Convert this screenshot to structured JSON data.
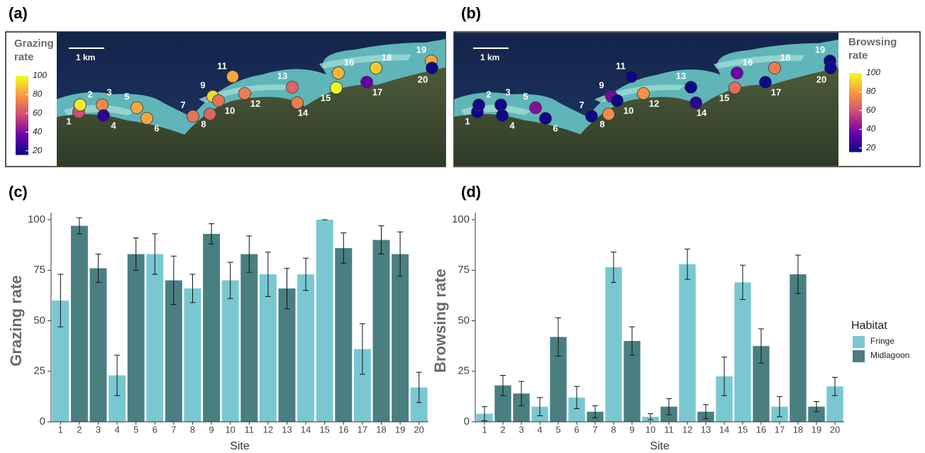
{
  "chart_data": [
    {
      "type": "map",
      "panel": "(a)",
      "colorbar_title": "Grazing rate",
      "scale_bar": "1 km",
      "clim": [
        16,
        100
      ],
      "cticks": [
        20,
        40,
        60,
        80,
        100
      ],
      "colormap": [
        "#0d0887",
        "#6a00a8",
        "#cb4679",
        "#f89441",
        "#f0f921"
      ]
    },
    {
      "type": "map",
      "panel": "(b)",
      "colorbar_title": "Browsing rate",
      "scale_bar": "1 km",
      "clim": [
        16,
        100
      ],
      "cticks": [
        20,
        40,
        60,
        80,
        100
      ],
      "colormap": [
        "#0d0887",
        "#6a00a8",
        "#cb4679",
        "#f89441",
        "#f0f921"
      ]
    },
    {
      "type": "bar",
      "panel": "(c)",
      "xlabel": "Site",
      "ylabel": "Grazing rate",
      "categories": [
        "1",
        "2",
        "3",
        "4",
        "5",
        "6",
        "7",
        "8",
        "9",
        "10",
        "11",
        "12",
        "13",
        "14",
        "15",
        "16",
        "17",
        "18",
        "19",
        "20"
      ],
      "ylim": [
        0,
        103.5
      ],
      "yticks": [
        0,
        25,
        50,
        75,
        100
      ],
      "series": [
        {
          "color": "#79c8d1",
          "values": [
            60,
            null,
            null,
            23,
            null,
            83,
            null,
            66,
            null,
            70,
            null,
            73,
            null,
            73,
            100,
            null,
            36,
            null,
            null,
            17
          ],
          "errors": [
            13,
            null,
            null,
            10,
            null,
            10,
            null,
            7,
            null,
            9,
            null,
            11,
            null,
            8,
            0,
            null,
            12.5,
            null,
            null,
            7.5
          ]
        },
        {
          "color": "#4a7f82",
          "values": [
            null,
            97,
            76,
            null,
            83,
            null,
            70,
            null,
            93,
            null,
            83,
            null,
            66,
            null,
            null,
            86,
            null,
            90,
            83,
            null
          ],
          "errors": [
            null,
            4,
            7,
            null,
            8,
            null,
            12,
            null,
            5,
            null,
            9,
            null,
            10,
            null,
            null,
            7.5,
            null,
            7,
            11,
            null
          ]
        }
      ]
    },
    {
      "type": "bar",
      "panel": "(d)",
      "xlabel": "Site",
      "ylabel": "Browsing rate",
      "categories": [
        "1",
        "2",
        "3",
        "4",
        "5",
        "6",
        "7",
        "8",
        "9",
        "10",
        "11",
        "12",
        "13",
        "14",
        "15",
        "16",
        "17",
        "18",
        "19",
        "20"
      ],
      "ylim": [
        0,
        103.5
      ],
      "yticks": [
        0,
        25,
        50,
        75,
        100
      ],
      "legend": "right",
      "legend_title": "Habitat",
      "series": [
        {
          "name": "Fringe",
          "color": "#79c8d1",
          "values": [
            4,
            null,
            null,
            7.5,
            null,
            12,
            null,
            76.5,
            null,
            2.5,
            null,
            78,
            null,
            22.5,
            69,
            null,
            7.5,
            null,
            null,
            17.5
          ],
          "errors": [
            3.5,
            null,
            null,
            4.5,
            null,
            5.5,
            null,
            7.5,
            null,
            1.5,
            null,
            7.5,
            null,
            9.5,
            8.5,
            null,
            5,
            null,
            null,
            4.5
          ]
        },
        {
          "name": "Midlagoon",
          "color": "#4a7f82",
          "values": [
            null,
            18,
            14,
            null,
            42,
            null,
            5,
            null,
            40,
            null,
            7.5,
            null,
            5,
            null,
            null,
            37.5,
            null,
            73,
            7.5,
            null
          ],
          "errors": [
            null,
            5,
            6,
            null,
            9.5,
            null,
            3,
            null,
            7,
            null,
            4,
            null,
            3.5,
            null,
            null,
            8.5,
            null,
            9.5,
            2.5,
            null
          ]
        }
      ]
    }
  ]
}
